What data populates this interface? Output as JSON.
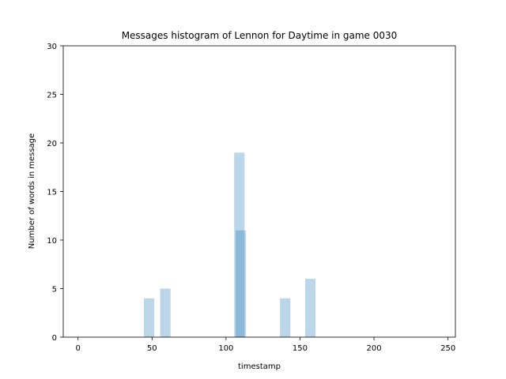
{
  "chart_data": {
    "type": "bar",
    "title": "Messages histogram of Lennon for Daytime in game 0030",
    "xlabel": "timestamp",
    "ylabel": "Number of words in message",
    "xlim": [
      -10,
      255
    ],
    "ylim": [
      0,
      30
    ],
    "x_ticks": [
      0,
      50,
      100,
      150,
      200,
      250
    ],
    "y_ticks": [
      0,
      5,
      10,
      15,
      20,
      25,
      30
    ],
    "bar_width": 7,
    "bar_color": "#1f77b4",
    "bar_opacity": 0.3,
    "bars": [
      {
        "x": 48,
        "y": 4
      },
      {
        "x": 59,
        "y": 5
      },
      {
        "x": 109,
        "y": 19
      },
      {
        "x": 110,
        "y": 11
      },
      {
        "x": 140,
        "y": 4
      },
      {
        "x": 157,
        "y": 6
      }
    ],
    "grid": false
  }
}
